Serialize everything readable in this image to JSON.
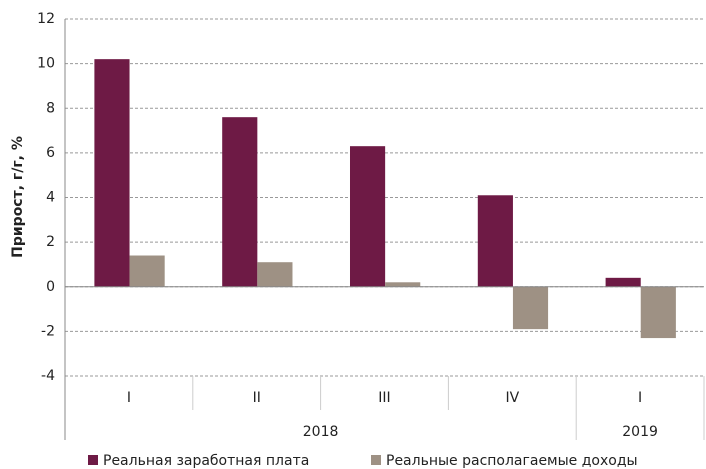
{
  "chart_data": {
    "type": "bar",
    "y_label": "Прирост, г/г, %",
    "categories": [
      "I",
      "II",
      "III",
      "IV",
      "I"
    ],
    "x_groups": [
      "2018",
      "2018",
      "2018",
      "2018",
      "2019"
    ],
    "series": [
      {
        "name": "Реальная заработная плата",
        "color": "#6e1a45",
        "values": [
          10.2,
          7.6,
          6.3,
          4.1,
          0.4
        ]
      },
      {
        "name": "Реальные располагаемые доходы",
        "color": "#9e9184",
        "values": [
          1.4,
          1.1,
          0.2,
          -1.9,
          -2.3
        ]
      }
    ],
    "ylim": [
      -4,
      12
    ],
    "yticks": [
      -4,
      -2,
      0,
      2,
      4,
      6,
      8,
      10,
      12
    ],
    "grid": true,
    "legend": "bottom"
  }
}
